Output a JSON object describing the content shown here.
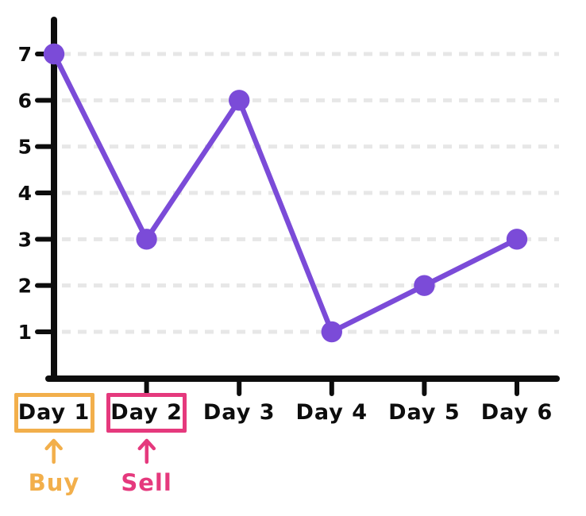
{
  "chart_data": {
    "type": "line",
    "title": "",
    "xlabel": "",
    "ylabel": "",
    "categories": [
      "Day 1",
      "Day 2",
      "Day 3",
      "Day 4",
      "Day 5",
      "Day 6"
    ],
    "values": [
      7,
      3,
      6,
      1,
      2,
      3
    ],
    "yticks": [
      1,
      2,
      3,
      4,
      5,
      6,
      7
    ],
    "ylim": [
      0,
      7.8
    ],
    "grid": "horizontal-dashed",
    "legend": "none",
    "line_color": "#7b4bd8",
    "marker_color": "#7b4bd8",
    "axis_color": "#0d0d0d",
    "tick_label_color": "#0d0d0d",
    "gridline_color": "#e7e7e7"
  },
  "annotations": [
    {
      "target_category": "Day 1",
      "index": 0,
      "label": "Buy",
      "color": "#f2af4b",
      "icon": "arrow-up-icon"
    },
    {
      "target_category": "Day 2",
      "index": 1,
      "label": "Sell",
      "color": "#e5397d",
      "icon": "arrow-up-icon"
    }
  ]
}
